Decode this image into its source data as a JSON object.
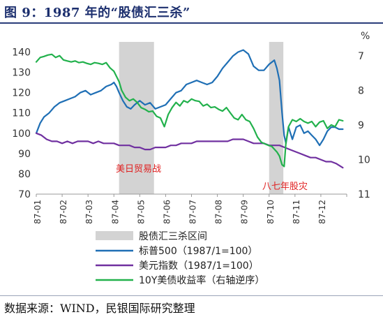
{
  "title": "图 9：1987 年的“股债汇三杀”",
  "source": "数据来源：WIND，民银国际研究整理",
  "chart_data": {
    "type": "line",
    "title": "图 9：1987 年的“股债汇三杀”",
    "xlabel": "",
    "ylabel": "",
    "y2label": "%",
    "ylim": [
      70,
      145
    ],
    "y2lim": [
      6.6,
      11.0
    ],
    "y2_reversed": true,
    "yticks": [
      70,
      80,
      90,
      100,
      110,
      120,
      130,
      140
    ],
    "y2ticks": [
      7,
      8,
      9,
      10,
      11
    ],
    "categories": [
      "87-01",
      "87-02",
      "87-03",
      "87-04",
      "87-05",
      "87-06",
      "87-07",
      "87-08",
      "87-09",
      "87-10",
      "87-11",
      "87-12"
    ],
    "shaded_regions": [
      {
        "name": "股债汇三杀区间",
        "from": 3.2,
        "to": 4.55,
        "label": "美日贸易战",
        "color": "#d3d3d3"
      },
      {
        "name": "股债汇三杀区间",
        "from": 9.0,
        "to": 9.55,
        "label": "八七年股灾",
        "color": "#d3d3d3"
      }
    ],
    "series": [
      {
        "name": "标普500（1987/1=100）",
        "axis": "left",
        "color": "#1f6fb5",
        "x": [
          0,
          0.15,
          0.3,
          0.5,
          0.7,
          0.9,
          1.1,
          1.3,
          1.5,
          1.7,
          1.9,
          2.1,
          2.3,
          2.5,
          2.7,
          2.9,
          3.0,
          3.1,
          3.2,
          3.35,
          3.5,
          3.65,
          3.8,
          4.0,
          4.2,
          4.4,
          4.6,
          4.8,
          5.0,
          5.2,
          5.4,
          5.6,
          5.8,
          6.0,
          6.2,
          6.4,
          6.6,
          6.8,
          7.0,
          7.2,
          7.4,
          7.6,
          7.8,
          8.0,
          8.2,
          8.4,
          8.6,
          8.8,
          9.0,
          9.1,
          9.2,
          9.3,
          9.4,
          9.5,
          9.58,
          9.65,
          9.75,
          9.9,
          10.05,
          10.2,
          10.35,
          10.5,
          10.65,
          10.8,
          10.95,
          11.1,
          11.25,
          11.4,
          11.55,
          11.7,
          11.85
        ],
        "values": [
          100,
          105,
          108,
          110,
          113,
          115,
          116,
          117,
          118,
          120,
          121,
          119,
          120,
          121,
          123,
          124,
          125,
          123,
          120,
          116,
          113,
          112,
          114,
          116,
          114,
          115,
          112,
          113,
          114,
          117,
          120,
          121,
          124,
          125,
          126,
          125,
          124,
          125,
          128,
          132,
          135,
          138,
          140,
          141,
          139,
          133,
          131,
          131,
          134,
          135,
          136,
          132,
          126,
          110,
          99,
          95,
          103,
          97,
          103,
          104,
          100,
          101,
          99,
          97,
          94,
          97,
          101,
          103,
          103,
          102,
          102
        ]
      },
      {
        "name": "美元指数（1987/1=100）",
        "axis": "left",
        "color": "#7030a0",
        "x": [
          0,
          0.2,
          0.4,
          0.6,
          0.8,
          1.0,
          1.2,
          1.4,
          1.6,
          1.8,
          2.0,
          2.2,
          2.4,
          2.6,
          2.8,
          3.0,
          3.2,
          3.4,
          3.6,
          3.8,
          4.0,
          4.2,
          4.4,
          4.6,
          4.8,
          5.0,
          5.2,
          5.4,
          5.6,
          5.8,
          6.0,
          6.2,
          6.4,
          6.6,
          6.8,
          7.0,
          7.2,
          7.4,
          7.6,
          7.8,
          8.0,
          8.2,
          8.4,
          8.6,
          8.8,
          9.0,
          9.2,
          9.4,
          9.6,
          9.8,
          10.0,
          10.2,
          10.4,
          10.6,
          10.8,
          11.0,
          11.2,
          11.4,
          11.6,
          11.85
        ],
        "values": [
          100,
          99,
          97,
          96,
          96,
          95,
          96,
          95,
          96,
          96,
          96,
          95,
          96,
          95,
          95,
          95,
          94,
          94,
          94,
          93,
          93,
          92,
          92,
          93,
          93,
          93,
          94,
          94,
          95,
          95,
          95,
          96,
          96,
          96,
          96,
          96,
          96,
          96,
          97,
          97,
          97,
          96,
          95,
          95,
          95,
          94,
          94,
          94,
          93,
          92,
          91,
          90,
          89,
          88,
          88,
          87,
          86,
          86,
          85,
          83
        ]
      },
      {
        "name": "10Y美债收益率（右轴逆序）",
        "axis": "right",
        "color": "#22b14c",
        "x": [
          0,
          0.15,
          0.3,
          0.45,
          0.6,
          0.75,
          0.9,
          1.05,
          1.2,
          1.35,
          1.5,
          1.65,
          1.8,
          1.95,
          2.1,
          2.25,
          2.4,
          2.55,
          2.7,
          2.85,
          3.0,
          3.1,
          3.2,
          3.3,
          3.45,
          3.6,
          3.75,
          3.9,
          4.05,
          4.2,
          4.35,
          4.5,
          4.65,
          4.8,
          4.95,
          5.1,
          5.25,
          5.4,
          5.55,
          5.7,
          5.85,
          6.0,
          6.15,
          6.3,
          6.45,
          6.6,
          6.75,
          6.9,
          7.05,
          7.2,
          7.35,
          7.5,
          7.65,
          7.8,
          7.95,
          8.1,
          8.25,
          8.4,
          8.55,
          8.7,
          8.85,
          9.0,
          9.1,
          9.2,
          9.3,
          9.4,
          9.5,
          9.58,
          9.65,
          9.75,
          9.9,
          10.05,
          10.2,
          10.35,
          10.5,
          10.65,
          10.8,
          10.95,
          11.1,
          11.25,
          11.4,
          11.55,
          11.7,
          11.85
        ],
        "values": [
          7.18,
          7.05,
          7.02,
          6.98,
          6.96,
          7.05,
          7.0,
          7.12,
          7.15,
          7.18,
          7.15,
          7.2,
          7.18,
          7.22,
          7.25,
          7.2,
          7.22,
          7.25,
          7.2,
          7.35,
          7.45,
          7.6,
          7.75,
          8.0,
          8.2,
          8.3,
          8.25,
          8.35,
          8.5,
          8.55,
          8.62,
          8.6,
          8.75,
          8.8,
          9.05,
          8.7,
          8.5,
          8.35,
          8.45,
          8.3,
          8.35,
          8.25,
          8.3,
          8.32,
          8.45,
          8.4,
          8.5,
          8.48,
          8.55,
          8.6,
          8.5,
          8.65,
          8.8,
          8.85,
          8.7,
          8.85,
          8.9,
          9.1,
          9.35,
          9.5,
          9.55,
          9.6,
          9.62,
          9.7,
          9.78,
          9.9,
          10.15,
          10.2,
          9.5,
          9.05,
          8.85,
          8.9,
          8.82,
          8.9,
          8.95,
          8.9,
          9.05,
          8.92,
          8.88,
          9.1,
          9.0,
          9.05,
          8.85,
          8.88
        ]
      }
    ],
    "grid": false,
    "legend_position": "bottom"
  }
}
